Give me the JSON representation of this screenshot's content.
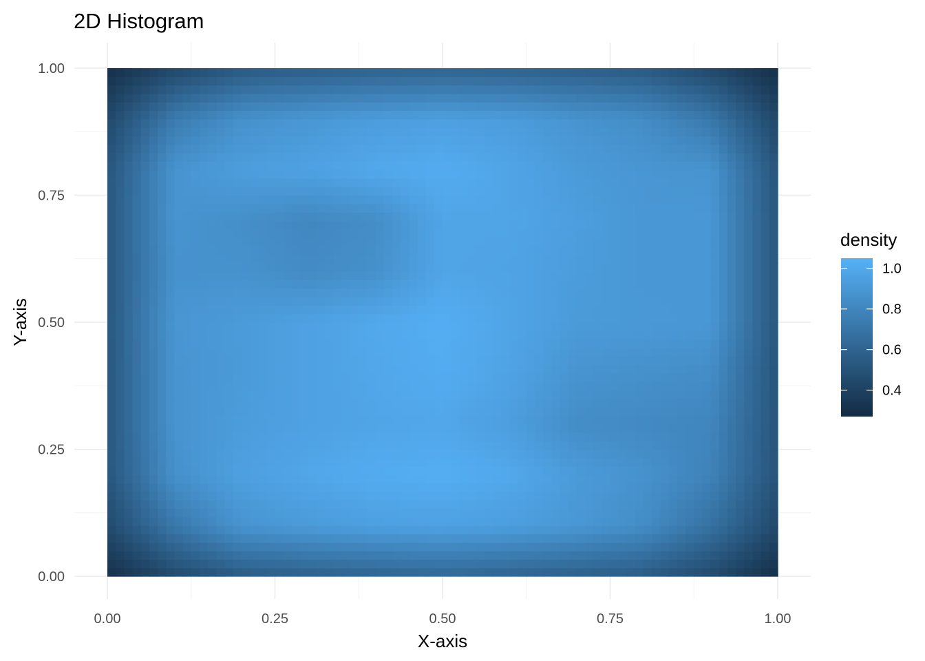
{
  "chart_data": {
    "type": "heatmap",
    "title": "2D Histogram",
    "xlabel": "X-axis",
    "ylabel": "Y-axis",
    "xlim": [
      0,
      1
    ],
    "ylim": [
      0,
      1
    ],
    "x_ticks": [
      "0.00",
      "0.25",
      "0.50",
      "0.75",
      "1.00"
    ],
    "y_ticks": [
      "0.00",
      "0.25",
      "0.50",
      "0.75",
      "1.00"
    ],
    "x_tick_values": [
      0,
      0.25,
      0.5,
      0.75,
      1.0
    ],
    "y_tick_values": [
      0,
      0.25,
      0.5,
      0.75,
      1.0
    ],
    "grid": true,
    "legend": {
      "title": "density",
      "position": "right",
      "range": [
        0.27,
        1.05
      ],
      "labels": [
        "1.0",
        "0.8",
        "0.6",
        "0.4"
      ],
      "values": [
        1.0,
        0.8,
        0.6,
        0.4
      ],
      "low_color": "#132B43",
      "high_color": "#56B1F7"
    },
    "density_grid": {
      "x": [
        0.0,
        0.1,
        0.2,
        0.3,
        0.4,
        0.5,
        0.6,
        0.7,
        0.8,
        0.9,
        1.0
      ],
      "y": [
        0.0,
        0.1,
        0.2,
        0.3,
        0.4,
        0.5,
        0.6,
        0.7,
        0.8,
        0.9,
        1.0
      ],
      "z": [
        [
          0.3,
          0.45,
          0.55,
          0.58,
          0.6,
          0.62,
          0.6,
          0.58,
          0.55,
          0.45,
          0.3
        ],
        [
          0.45,
          0.72,
          0.88,
          0.92,
          0.95,
          0.96,
          0.94,
          0.9,
          0.84,
          0.68,
          0.44
        ],
        [
          0.52,
          0.86,
          0.95,
          0.99,
          1.02,
          1.03,
          1.0,
          0.92,
          0.87,
          0.78,
          0.5
        ],
        [
          0.53,
          0.88,
          0.93,
          0.96,
          0.98,
          0.99,
          0.94,
          0.84,
          0.82,
          0.8,
          0.51
        ],
        [
          0.53,
          0.88,
          0.92,
          0.96,
          0.99,
          1.02,
          0.97,
          0.88,
          0.86,
          0.84,
          0.51
        ],
        [
          0.53,
          0.89,
          0.92,
          0.96,
          1.0,
          1.03,
          0.98,
          0.92,
          0.91,
          0.9,
          0.52
        ],
        [
          0.53,
          0.87,
          0.87,
          0.83,
          0.86,
          0.98,
          0.97,
          0.93,
          0.9,
          0.9,
          0.52
        ],
        [
          0.53,
          0.88,
          0.85,
          0.81,
          0.84,
          0.98,
          0.98,
          0.94,
          0.9,
          0.9,
          0.52
        ],
        [
          0.52,
          0.88,
          0.94,
          0.96,
          1.0,
          1.02,
          0.98,
          0.92,
          0.89,
          0.88,
          0.51
        ],
        [
          0.44,
          0.74,
          0.86,
          0.9,
          0.93,
          0.95,
          0.93,
          0.88,
          0.84,
          0.72,
          0.43
        ],
        [
          0.3,
          0.44,
          0.54,
          0.57,
          0.59,
          0.6,
          0.59,
          0.57,
          0.54,
          0.44,
          0.3
        ]
      ]
    }
  }
}
